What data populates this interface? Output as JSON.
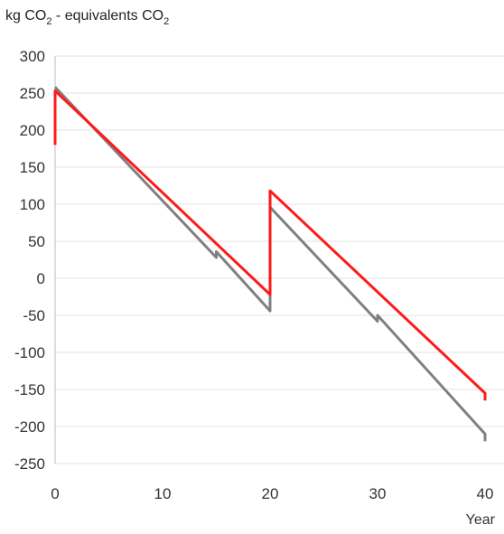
{
  "chart_data": {
    "type": "line",
    "title_parts": [
      "kg CO",
      "2",
      " - equivalents CO",
      "2"
    ],
    "xlabel": "Year",
    "ylabel": "",
    "xlim": [
      0,
      40
    ],
    "ylim": [
      -250,
      300
    ],
    "x_ticks": [
      0,
      10,
      20,
      30,
      40
    ],
    "y_ticks": [
      300,
      250,
      200,
      150,
      100,
      50,
      0,
      -50,
      -100,
      -150,
      -200,
      -250
    ],
    "grid": "horizontal",
    "legend": "none",
    "series": [
      {
        "color": "#808080",
        "points": [
          [
            0,
            258
          ],
          [
            15,
            28
          ],
          [
            15,
            36
          ],
          [
            20,
            -44
          ],
          [
            20,
            96
          ],
          [
            30,
            -58
          ],
          [
            30,
            -50
          ],
          [
            40,
            -210
          ],
          [
            40,
            -220
          ]
        ]
      },
      {
        "color": "#ff1a1a",
        "points": [
          [
            0,
            180
          ],
          [
            0,
            253
          ],
          [
            20,
            -22
          ],
          [
            20,
            118
          ],
          [
            40,
            -155
          ],
          [
            40,
            -165
          ]
        ]
      }
    ]
  }
}
